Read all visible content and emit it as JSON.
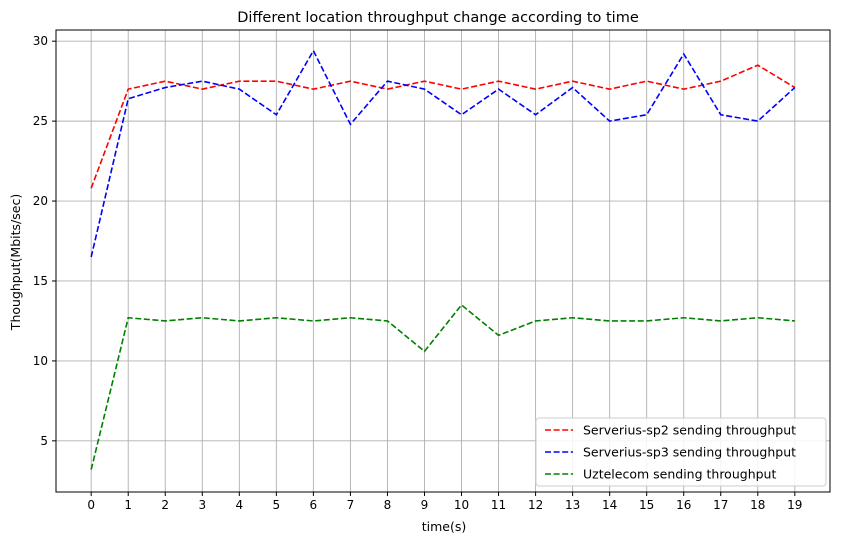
{
  "chart_data": {
    "type": "line",
    "title": "Different location throughput change according to time",
    "xlabel": "time(s)",
    "ylabel": "Thoughput(Mbits/sec)",
    "x": [
      0,
      1,
      2,
      3,
      4,
      5,
      6,
      7,
      8,
      9,
      10,
      11,
      12,
      13,
      14,
      15,
      16,
      17,
      18,
      19
    ],
    "xlim": [
      -0.95,
      19.95
    ],
    "ylim": [
      1.8,
      30.7
    ],
    "yticks": [
      5,
      10,
      15,
      20,
      25,
      30
    ],
    "grid": true,
    "legend_position": "lower-right",
    "series": [
      {
        "name": "Serverius-sp2 sending throughput",
        "color": "#ff0000",
        "style": "dashed",
        "values": [
          20.8,
          27.0,
          27.5,
          27.0,
          27.5,
          27.5,
          27.0,
          27.5,
          27.0,
          27.5,
          27.0,
          27.5,
          27.0,
          27.5,
          27.0,
          27.5,
          27.0,
          27.5,
          28.5,
          27.1
        ]
      },
      {
        "name": "Serverius-sp3 sending throughput",
        "color": "#0000ff",
        "style": "dashed",
        "values": [
          16.5,
          26.4,
          27.1,
          27.5,
          27.0,
          25.4,
          29.4,
          24.8,
          27.5,
          27.0,
          25.4,
          27.0,
          25.4,
          27.1,
          25.0,
          25.4,
          29.2,
          25.4,
          25.0,
          27.1
        ]
      },
      {
        "name": "Uztelecom sending throughput",
        "color": "#008000",
        "style": "dashed",
        "values": [
          3.2,
          12.7,
          12.5,
          12.7,
          12.5,
          12.7,
          12.5,
          12.7,
          12.5,
          10.6,
          13.5,
          11.6,
          12.5,
          12.7,
          12.5,
          12.5,
          12.7,
          12.5,
          12.7,
          12.5
        ]
      }
    ]
  }
}
